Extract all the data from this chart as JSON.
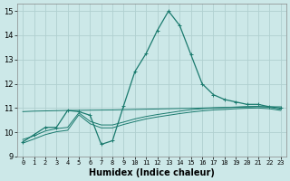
{
  "title": "",
  "xlabel": "Humidex (Indice chaleur)",
  "ylabel": "",
  "background_color": "#cce8e8",
  "grid_color": "#b0d0d0",
  "line_color": "#1a7a6e",
  "xlim": [
    -0.5,
    23.5
  ],
  "ylim": [
    9,
    15.3
  ],
  "yticks": [
    9,
    10,
    11,
    12,
    13,
    14,
    15
  ],
  "xticks": [
    0,
    1,
    2,
    3,
    4,
    5,
    6,
    7,
    8,
    9,
    10,
    11,
    12,
    13,
    14,
    15,
    16,
    17,
    18,
    19,
    20,
    21,
    22,
    23
  ],
  "series": [
    {
      "x": [
        0,
        1,
        2,
        3,
        4,
        5,
        6,
        7,
        8,
        9,
        10,
        11,
        12,
        13,
        14,
        15,
        16,
        17,
        18,
        19,
        20,
        21,
        22,
        23
      ],
      "y": [
        9.6,
        9.9,
        10.2,
        10.2,
        10.9,
        10.85,
        10.7,
        9.5,
        9.65,
        11.1,
        12.5,
        13.25,
        14.2,
        15.0,
        14.4,
        13.2,
        12.0,
        11.55,
        11.35,
        11.25,
        11.15,
        11.15,
        11.05,
        11.0
      ],
      "color": "#1a7a6e",
      "linewidth": 0.9,
      "marker": "+",
      "markersize": 3.5,
      "zorder": 5
    },
    {
      "x": [
        0,
        1,
        2,
        3,
        4,
        5,
        6,
        7,
        8,
        9,
        10,
        11,
        12,
        13,
        14,
        15,
        16,
        17,
        18,
        19,
        20,
        21,
        22,
        23
      ],
      "y": [
        10.85,
        10.87,
        10.88,
        10.89,
        10.9,
        10.905,
        10.91,
        10.915,
        10.92,
        10.93,
        10.94,
        10.95,
        10.96,
        10.97,
        10.98,
        10.99,
        11.0,
        11.01,
        11.02,
        11.03,
        11.04,
        11.05,
        11.05,
        11.05
      ],
      "color": "#1a7a6e",
      "linewidth": 0.7,
      "marker": null,
      "markersize": 0,
      "zorder": 3
    },
    {
      "x": [
        0,
        1,
        2,
        3,
        4,
        5,
        6,
        7,
        8,
        9,
        10,
        11,
        12,
        13,
        14,
        15,
        16,
        17,
        18,
        19,
        20,
        21,
        22,
        23
      ],
      "y": [
        9.7,
        9.85,
        10.05,
        10.15,
        10.2,
        10.8,
        10.45,
        10.3,
        10.3,
        10.42,
        10.55,
        10.65,
        10.73,
        10.8,
        10.87,
        10.93,
        10.97,
        11.0,
        11.02,
        11.04,
        11.06,
        11.07,
        11.03,
        10.95
      ],
      "color": "#1a7a6e",
      "linewidth": 0.7,
      "marker": null,
      "markersize": 0,
      "zorder": 3
    },
    {
      "x": [
        0,
        1,
        2,
        3,
        4,
        5,
        6,
        7,
        8,
        9,
        10,
        11,
        12,
        13,
        14,
        15,
        16,
        17,
        18,
        19,
        20,
        21,
        22,
        23
      ],
      "y": [
        9.55,
        9.72,
        9.9,
        10.02,
        10.08,
        10.72,
        10.35,
        10.18,
        10.18,
        10.32,
        10.44,
        10.55,
        10.63,
        10.7,
        10.77,
        10.83,
        10.88,
        10.92,
        10.94,
        10.97,
        10.99,
        11.0,
        10.97,
        10.9
      ],
      "color": "#1a7a6e",
      "linewidth": 0.7,
      "marker": null,
      "markersize": 0,
      "zorder": 3
    }
  ]
}
